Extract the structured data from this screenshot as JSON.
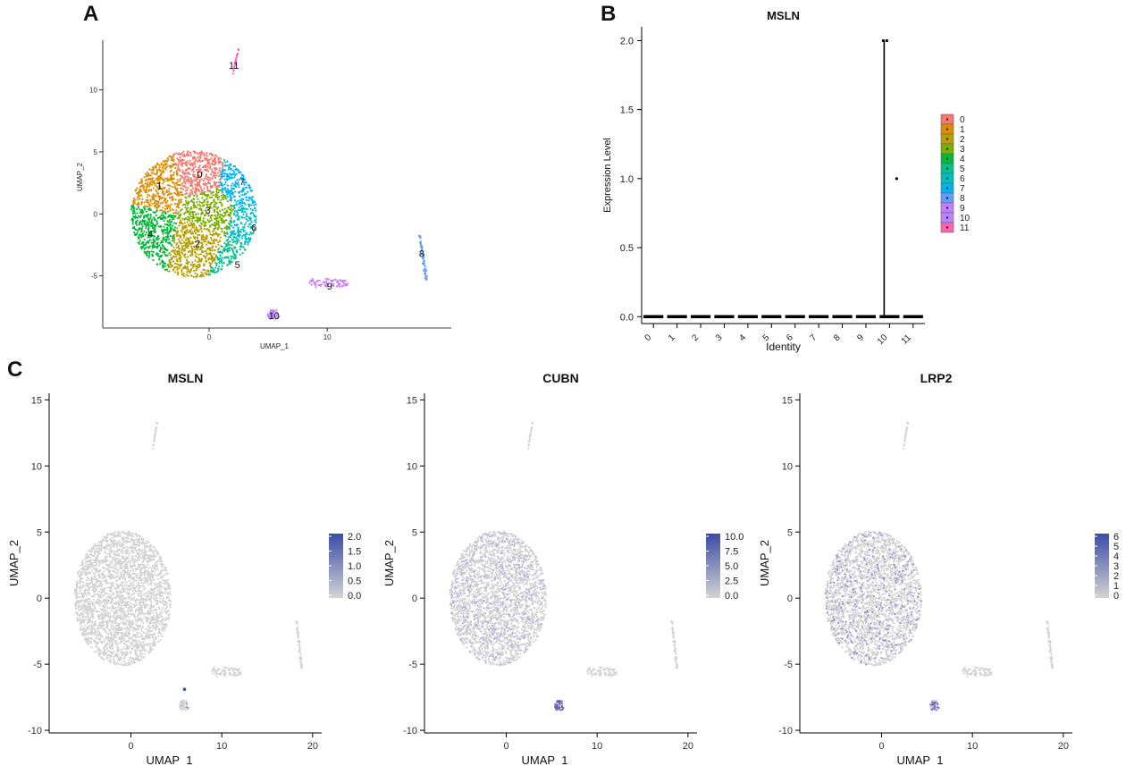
{
  "panel_labels": {
    "a": "A",
    "b": "B",
    "c": "C"
  },
  "chart_data": [
    {
      "type": "scatter",
      "panel": "A",
      "title": "",
      "xlabel": "UMAP_1",
      "ylabel": "UMAP_2",
      "xlim": [
        -9,
        20.5
      ],
      "ylim": [
        -9.2,
        14
      ],
      "xticks": [
        0,
        10
      ],
      "yticks": [
        -5,
        0,
        5,
        10
      ],
      "clusters": [
        {
          "label": "0",
          "center": [
            -0.8,
            3.2
          ],
          "color": "#F8766D"
        },
        {
          "label": "1",
          "center": [
            -4.2,
            2.3
          ],
          "color": "#DE8C00"
        },
        {
          "label": "2",
          "center": [
            -1.0,
            -2.4
          ],
          "color": "#B79F00"
        },
        {
          "label": "3",
          "center": [
            -0.1,
            0.3
          ],
          "color": "#7CAE00"
        },
        {
          "label": "4",
          "center": [
            -5.0,
            -1.6
          ],
          "color": "#00BA38"
        },
        {
          "label": "5",
          "center": [
            2.4,
            -4.1
          ],
          "color": "#00C08B"
        },
        {
          "label": "6",
          "center": [
            3.8,
            -1.1
          ],
          "color": "#00BFC4"
        },
        {
          "label": "7",
          "center": [
            2.8,
            2.6
          ],
          "color": "#00B4F0"
        },
        {
          "label": "8",
          "center": [
            18.0,
            -3.2
          ],
          "color": "#619CFF"
        },
        {
          "label": "9",
          "center": [
            10.2,
            -5.8
          ],
          "color": "#C77CFF"
        },
        {
          "label": "10",
          "center": [
            5.5,
            -8.2
          ],
          "color": "#B983FF"
        },
        {
          "label": "11",
          "center": [
            2.1,
            12.0
          ],
          "color": "#FF64B0"
        }
      ]
    },
    {
      "type": "violin",
      "panel": "B",
      "title": "MSLN",
      "xlabel": "Identity",
      "ylabel": "Expression Level",
      "ylim": [
        -0.05,
        2.1
      ],
      "yticks": [
        0.0,
        0.5,
        1.0,
        1.5,
        2.0
      ],
      "ytick_labels": [
        "0.0",
        "0.5",
        "1.0",
        "1.5",
        "2.0"
      ],
      "categories": [
        "0",
        "1",
        "2",
        "3",
        "4",
        "5",
        "6",
        "7",
        "8",
        "9",
        "10",
        "11"
      ],
      "outliers": [
        {
          "category": "10",
          "values": [
            2.0,
            2.0,
            1.0
          ]
        }
      ],
      "legend": [
        "0",
        "1",
        "2",
        "3",
        "4",
        "5",
        "6",
        "7",
        "8",
        "9",
        "10",
        "11"
      ],
      "legend_colors": [
        "#F8766D",
        "#DE8C00",
        "#B79F00",
        "#7CAE00",
        "#00BA38",
        "#00C08B",
        "#00BFC4",
        "#00B4F0",
        "#619CFF",
        "#C77CFF",
        "#B983FF",
        "#FF64B0"
      ]
    },
    {
      "type": "scatter",
      "panel": "C",
      "title": "MSLN",
      "xlabel": "UMAP_1",
      "ylabel": "UMAP_2",
      "xlim": [
        -9,
        21
      ],
      "ylim": [
        -10.2,
        15.5
      ],
      "xticks": [
        0,
        10,
        20
      ],
      "yticks": [
        -10,
        -5,
        0,
        5,
        10,
        15
      ],
      "colorbar_ticks": [
        "2.0",
        "1.5",
        "1.0",
        "0.5",
        "0.0"
      ],
      "colorbar_range": [
        0,
        2.0
      ],
      "low_color": "#D3D3D3",
      "high_color": "#3B4CA6"
    },
    {
      "type": "scatter",
      "panel": "C",
      "title": "CUBN",
      "xlabel": "UMAP_1",
      "ylabel": "UMAP_2",
      "xlim": [
        -9,
        21
      ],
      "ylim": [
        -10.2,
        15.5
      ],
      "xticks": [
        0,
        10,
        20
      ],
      "yticks": [
        -10,
        -5,
        0,
        5,
        10,
        15
      ],
      "colorbar_ticks": [
        "10.0",
        "7.5",
        "5.0",
        "2.5",
        "0.0"
      ],
      "colorbar_range": [
        0,
        10.0
      ],
      "low_color": "#D3D3D3",
      "high_color": "#3B4CA6"
    },
    {
      "type": "scatter",
      "panel": "C",
      "title": "LRP2",
      "xlabel": "UMAP_1",
      "ylabel": "UMAP_2",
      "xlim": [
        -9,
        21
      ],
      "ylim": [
        -10.2,
        15.5
      ],
      "xticks": [
        0,
        10,
        20
      ],
      "yticks": [
        -10,
        -5,
        0,
        5,
        10,
        15
      ],
      "colorbar_ticks": [
        "6",
        "5",
        "4",
        "3",
        "2",
        "1",
        "0"
      ],
      "colorbar_range": [
        0,
        6
      ],
      "low_color": "#D3D3D3",
      "high_color": "#3B4CA6"
    }
  ]
}
